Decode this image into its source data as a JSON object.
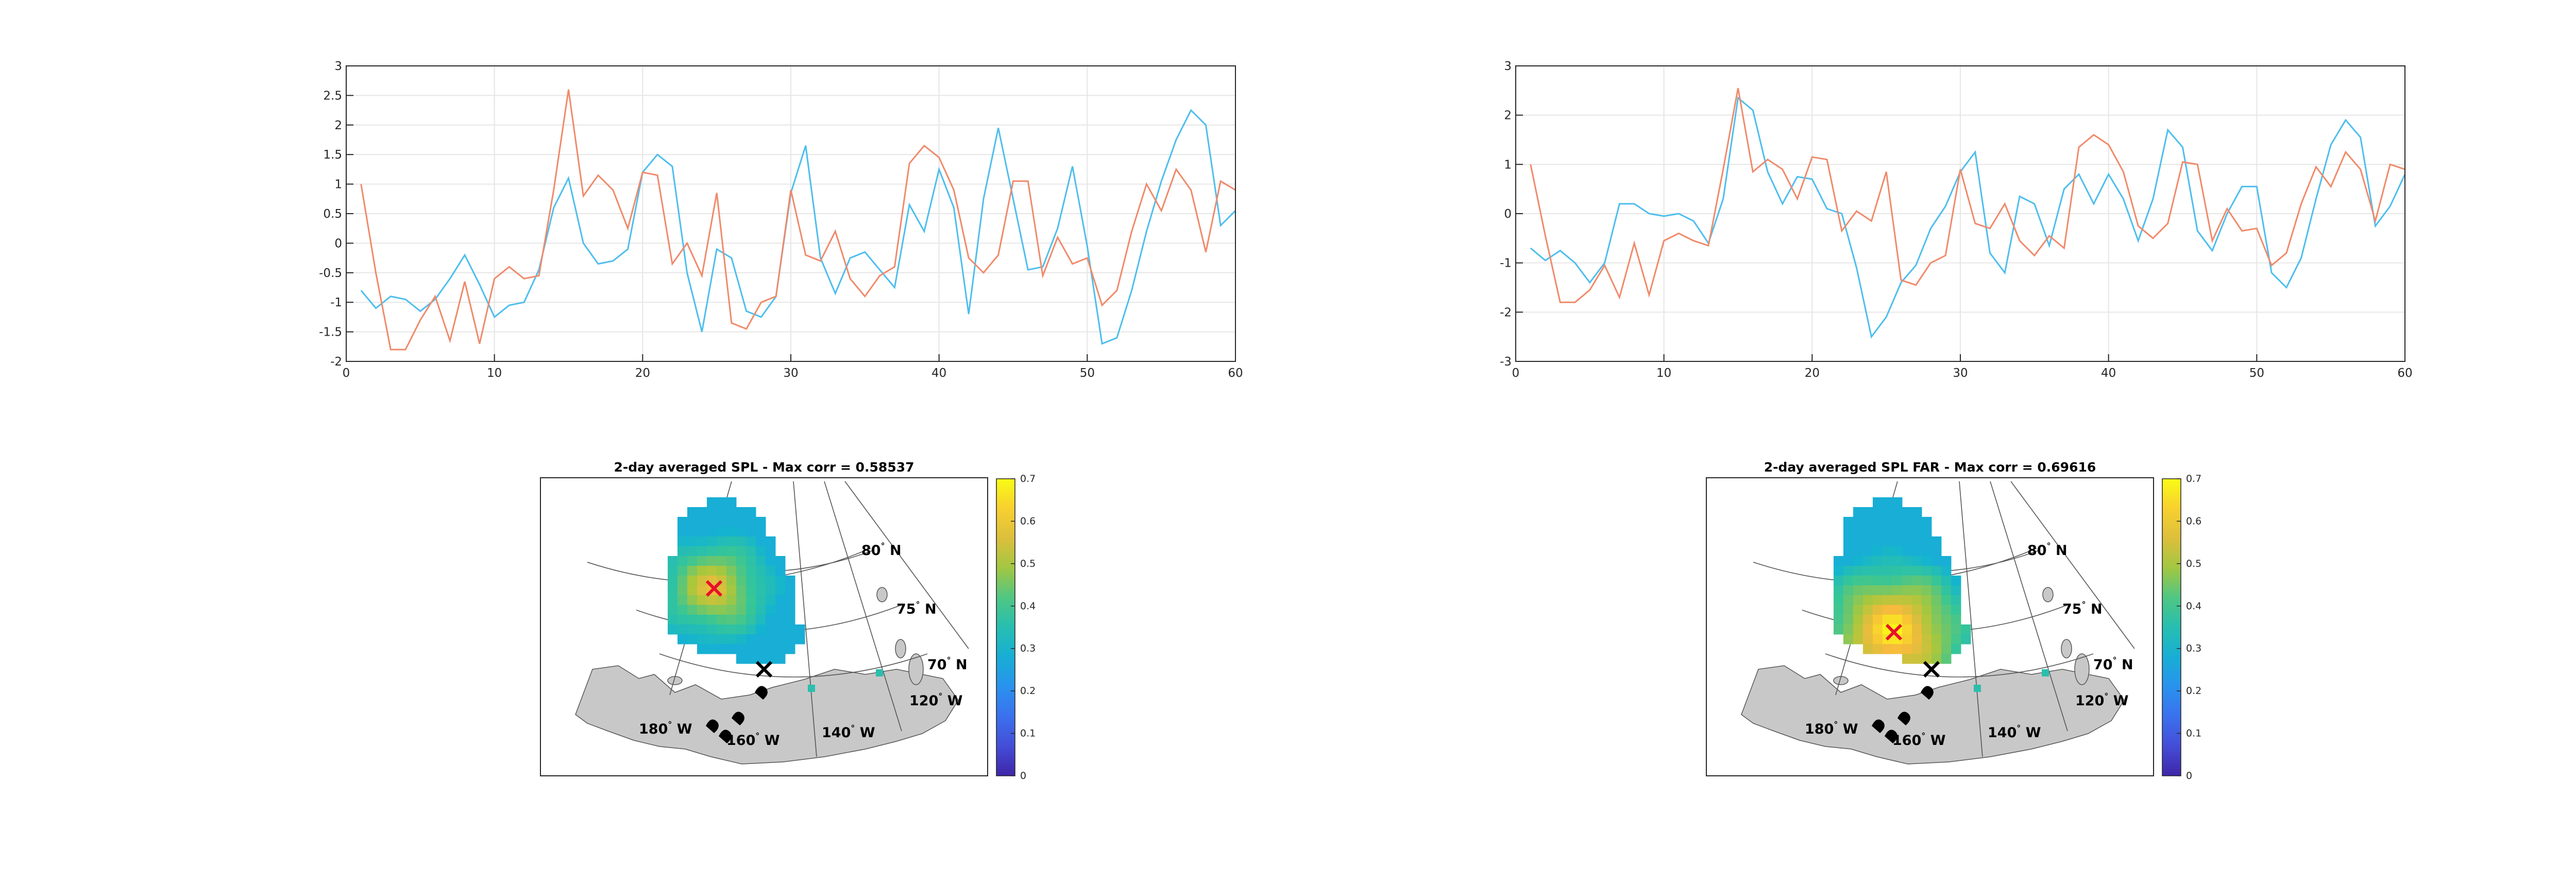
{
  "colors": {
    "series_blue": "#4DBEEE",
    "series_orange": "#F08A6B",
    "land": "#C8C8C8",
    "marker_red": "#E8102A",
    "marker_black": "#000000"
  },
  "chart_data": [
    {
      "type": "line",
      "title": "",
      "xlim": [
        0,
        60
      ],
      "ylim": [
        -2,
        3
      ],
      "xticks": [
        "0",
        "10",
        "20",
        "30",
        "40",
        "50",
        "60"
      ],
      "yticks": [
        "-2",
        "-1.5",
        "-1",
        "-0.5",
        "0",
        "0.5",
        "1",
        "1.5",
        "2",
        "2.5",
        "3"
      ],
      "grid": true,
      "x": [
        1,
        2,
        3,
        4,
        5,
        6,
        7,
        8,
        9,
        10,
        11,
        12,
        13,
        14,
        15,
        16,
        17,
        18,
        19,
        20,
        21,
        22,
        23,
        24,
        25,
        26,
        27,
        28,
        29,
        30,
        31,
        32,
        33,
        34,
        35,
        36,
        37,
        38,
        39,
        40,
        41,
        42,
        43,
        44,
        45,
        46,
        47,
        48,
        49,
        50,
        51,
        52,
        53,
        54,
        55,
        56,
        57,
        58,
        59,
        60
      ],
      "series": [
        {
          "color": "blue",
          "values": [
            -0.8,
            -1.1,
            -0.9,
            -0.95,
            -1.15,
            -0.95,
            -0.6,
            -0.2,
            -0.7,
            -1.25,
            -1.05,
            -1.0,
            -0.45,
            0.6,
            1.1,
            0.0,
            -0.35,
            -0.3,
            -0.1,
            1.2,
            1.5,
            1.3,
            -0.5,
            -1.5,
            -0.1,
            -0.25,
            -1.15,
            -1.25,
            -0.9,
            0.85,
            1.65,
            -0.25,
            -0.85,
            -0.25,
            -0.15,
            -0.45,
            -0.75,
            0.65,
            0.2,
            1.25,
            0.6,
            -1.2,
            0.75,
            1.95,
            0.75,
            -0.45,
            -0.4,
            0.25,
            1.3,
            -0.05,
            -1.7,
            -1.6,
            -0.8,
            0.2,
            1.05,
            1.75,
            2.25,
            2.0,
            0.3,
            0.55
          ]
        },
        {
          "color": "orange",
          "values": [
            1.0,
            -0.5,
            -1.8,
            -1.8,
            -1.3,
            -0.9,
            -1.65,
            -0.65,
            -1.7,
            -0.6,
            -0.4,
            -0.6,
            -0.55,
            0.9,
            2.6,
            0.8,
            1.15,
            0.9,
            0.25,
            1.2,
            1.15,
            -0.35,
            0.0,
            -0.55,
            0.85,
            -1.35,
            -1.45,
            -1.0,
            -0.9,
            0.9,
            -0.2,
            -0.3,
            0.2,
            -0.6,
            -0.9,
            -0.55,
            -0.4,
            1.35,
            1.65,
            1.45,
            0.9,
            -0.25,
            -0.5,
            -0.2,
            1.05,
            1.05,
            -0.55,
            0.1,
            -0.35,
            -0.25,
            -1.05,
            -0.8,
            0.2,
            1.0,
            0.55,
            1.25,
            0.9,
            -0.15,
            1.05,
            0.9
          ]
        }
      ]
    },
    {
      "type": "line",
      "title": "",
      "xlim": [
        0,
        60
      ],
      "ylim": [
        -3,
        3
      ],
      "xticks": [
        "0",
        "10",
        "20",
        "30",
        "40",
        "50",
        "60"
      ],
      "yticks": [
        "-3",
        "-2",
        "-1",
        "0",
        "1",
        "2",
        "3"
      ],
      "grid": true,
      "x": [
        1,
        2,
        3,
        4,
        5,
        6,
        7,
        8,
        9,
        10,
        11,
        12,
        13,
        14,
        15,
        16,
        17,
        18,
        19,
        20,
        21,
        22,
        23,
        24,
        25,
        26,
        27,
        28,
        29,
        30,
        31,
        32,
        33,
        34,
        35,
        36,
        37,
        38,
        39,
        40,
        41,
        42,
        43,
        44,
        45,
        46,
        47,
        48,
        49,
        50,
        51,
        52,
        53,
        54,
        55,
        56,
        57,
        58,
        59,
        60
      ],
      "series": [
        {
          "color": "blue",
          "values": [
            -0.7,
            -0.95,
            -0.75,
            -1.0,
            -1.4,
            -1.0,
            0.2,
            0.2,
            0.0,
            -0.05,
            0.0,
            -0.15,
            -0.6,
            0.3,
            2.35,
            2.1,
            0.85,
            0.2,
            0.75,
            0.7,
            0.1,
            0.0,
            -1.1,
            -2.5,
            -2.1,
            -1.4,
            -1.05,
            -0.3,
            0.15,
            0.85,
            1.25,
            -0.8,
            -1.2,
            0.35,
            0.2,
            -0.65,
            0.5,
            0.8,
            0.2,
            0.8,
            0.3,
            -0.55,
            0.3,
            1.7,
            1.35,
            -0.35,
            -0.75,
            0.0,
            0.55,
            0.55,
            -1.2,
            -1.5,
            -0.9,
            0.3,
            1.4,
            1.9,
            1.55,
            -0.25,
            0.15,
            0.8
          ]
        },
        {
          "color": "orange",
          "values": [
            1.0,
            -0.45,
            -1.8,
            -1.8,
            -1.55,
            -1.05,
            -1.7,
            -0.6,
            -1.65,
            -0.55,
            -0.4,
            -0.55,
            -0.65,
            0.9,
            2.55,
            0.85,
            1.1,
            0.9,
            0.3,
            1.15,
            1.1,
            -0.35,
            0.05,
            -0.15,
            0.85,
            -1.35,
            -1.45,
            -1.0,
            -0.85,
            0.9,
            -0.2,
            -0.3,
            0.2,
            -0.55,
            -0.85,
            -0.45,
            -0.7,
            1.35,
            1.6,
            1.4,
            0.85,
            -0.25,
            -0.5,
            -0.2,
            1.05,
            1.0,
            -0.55,
            0.1,
            -0.35,
            -0.3,
            -1.05,
            -0.8,
            0.2,
            0.95,
            0.55,
            1.25,
            0.9,
            -0.15,
            1.0,
            0.9
          ]
        }
      ]
    },
    {
      "type": "heatmap",
      "title": "2-day averaged SPL - Max corr = 0.58537",
      "colorbar": {
        "min": 0,
        "max": 0.7,
        "ticks": [
          "0",
          "0.1",
          "0.2",
          "0.3",
          "0.4",
          "0.5",
          "0.6",
          "0.7"
        ],
        "colormap": "parula"
      },
      "max_corr": 0.58537,
      "lat_labels": [
        "80° N",
        "75° N",
        "70° N"
      ],
      "lon_labels": [
        "180° W",
        "160° W",
        "140° W",
        "120° W"
      ]
    },
    {
      "type": "heatmap",
      "title": "2-day averaged SPL FAR - Max corr = 0.69616",
      "colorbar": {
        "min": 0,
        "max": 0.7,
        "ticks": [
          "0",
          "0.1",
          "0.2",
          "0.3",
          "0.4",
          "0.5",
          "0.6",
          "0.7"
        ],
        "colormap": "parula"
      },
      "max_corr": 0.69616,
      "lat_labels": [
        "80° N",
        "75° N",
        "70° N"
      ],
      "lon_labels": [
        "180° W",
        "160° W",
        "140° W",
        "120° W"
      ]
    }
  ]
}
